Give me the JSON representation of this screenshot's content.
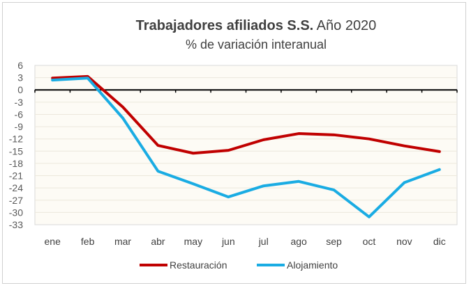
{
  "chart_data": {
    "type": "line",
    "title": "Trabajadores afiliados S.S.",
    "title_suffix": "Año 2020",
    "subtitle": "% de variación interanual",
    "categories": [
      "ene",
      "feb",
      "mar",
      "abr",
      "may",
      "jun",
      "jul",
      "ago",
      "sep",
      "oct",
      "nov",
      "dic"
    ],
    "series": [
      {
        "name": "Restauración",
        "color": "#c00000",
        "values": [
          2.9,
          3.3,
          -4.2,
          -13.6,
          -15.5,
          -14.8,
          -12.2,
          -10.7,
          -11.0,
          -12.0,
          -13.7,
          -15.1
        ]
      },
      {
        "name": "Alojamiento",
        "color": "#1aace3",
        "values": [
          2.4,
          2.9,
          -6.9,
          -19.9,
          -23.0,
          -26.2,
          -23.5,
          -22.4,
          -24.5,
          -31.1,
          -22.7,
          -19.5
        ]
      }
    ],
    "ylim": [
      -33,
      6
    ],
    "yticks": [
      6,
      3,
      0,
      -3,
      -6,
      -9,
      -12,
      -15,
      -18,
      -21,
      -24,
      -27,
      -30,
      -33
    ],
    "grid": true,
    "legend": "bottom",
    "plot_background": "#fdfbf5"
  }
}
